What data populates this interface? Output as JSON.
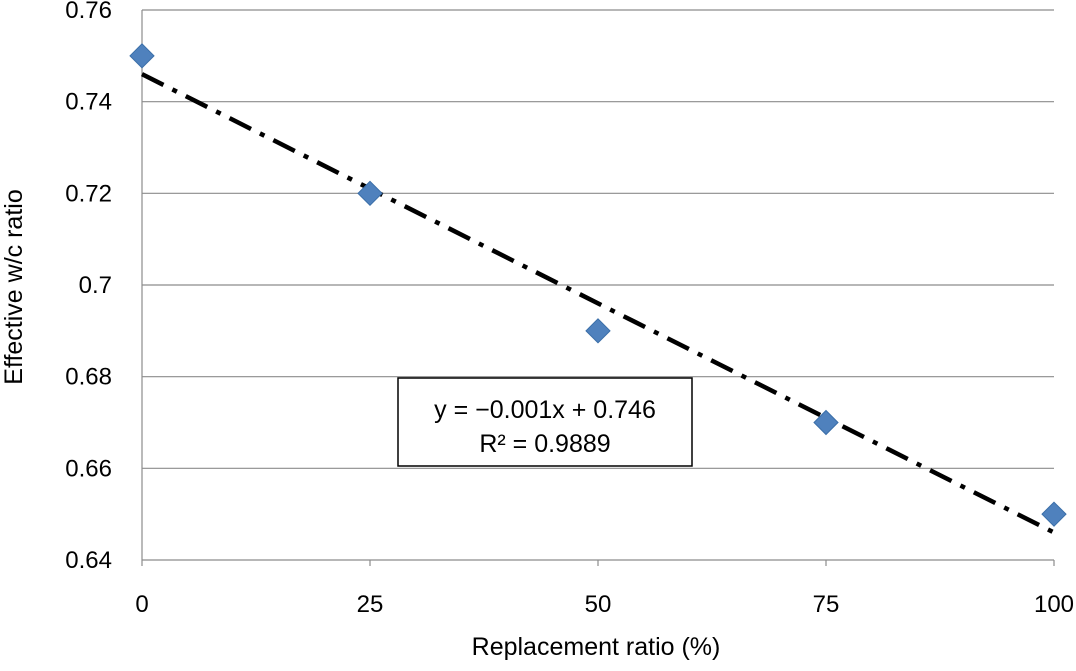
{
  "chart_data": {
    "type": "scatter",
    "title": "",
    "xlabel": "Replacement ratio (%)",
    "ylabel": "Effective w/c ratio",
    "xlim": [
      0,
      100
    ],
    "ylim": [
      0.64,
      0.76
    ],
    "x_ticks": [
      "0",
      "25",
      "50",
      "75",
      "100"
    ],
    "y_ticks": [
      "0.64",
      "0.66",
      "0.68",
      "0.7",
      "0.72",
      "0.74",
      "0.76"
    ],
    "grid": "horizontal",
    "series": [
      {
        "points": [
          {
            "x": 0,
            "y": 0.75
          },
          {
            "x": 25,
            "y": 0.72
          },
          {
            "x": 50,
            "y": 0.69
          },
          {
            "x": 75,
            "y": 0.67
          },
          {
            "x": 100,
            "y": 0.65
          }
        ],
        "color": "#4f81bd",
        "marker": "diamond"
      }
    ],
    "trendline": {
      "kind": "linear",
      "slope": -0.001,
      "intercept": 0.746,
      "x_range": [
        0,
        100
      ],
      "style": "dash-dot",
      "color": "#000000",
      "equation": "y = −0.001x + 0.746",
      "r2_label": "R² = 0.9889"
    }
  }
}
